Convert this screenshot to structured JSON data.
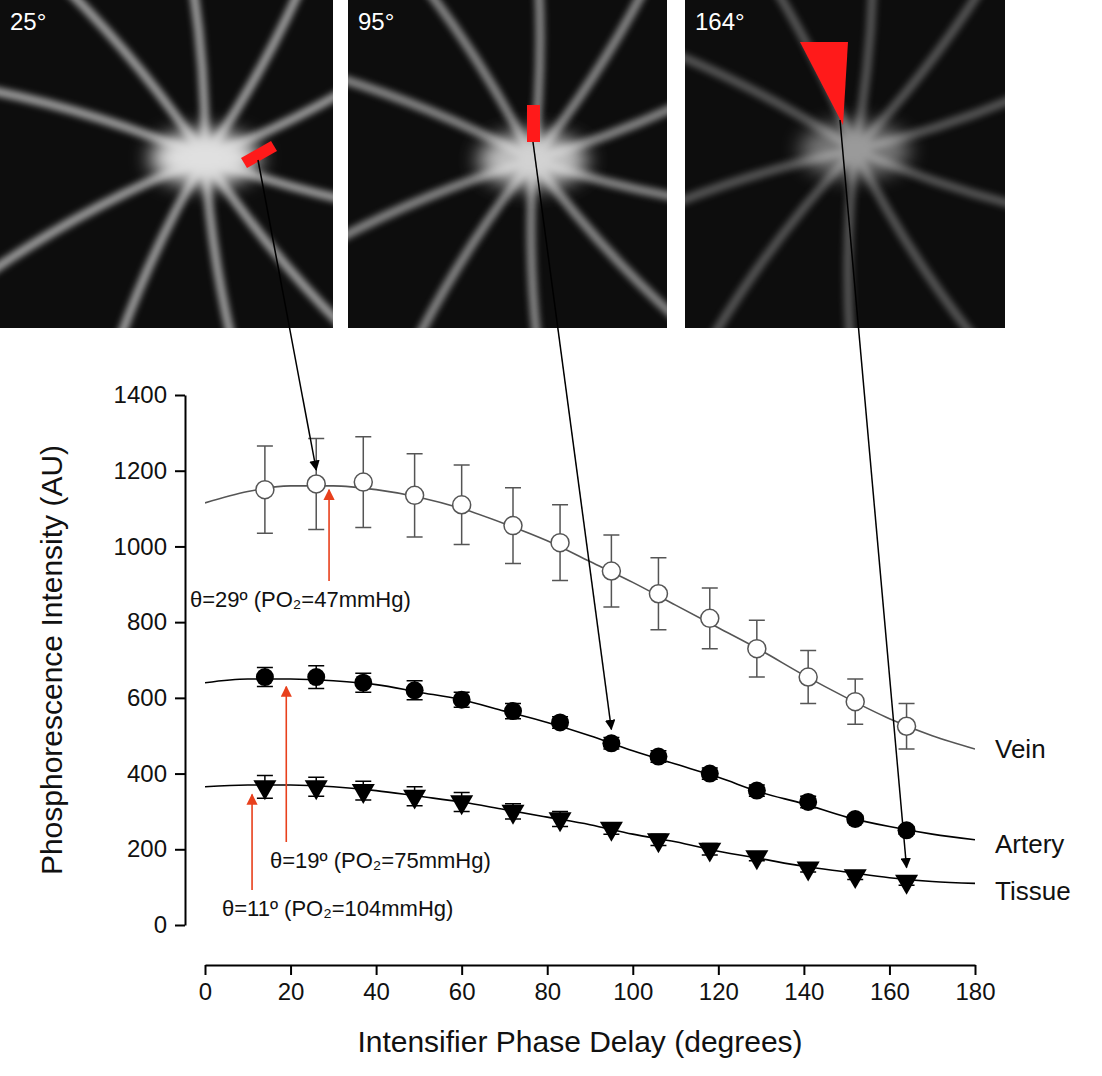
{
  "chart_data": {
    "type": "scatter",
    "xlabel": "Intensifier Phase Delay (degrees)",
    "ylabel": "Phosphorescence Intensity (AU)",
    "xlim": [
      0,
      180
    ],
    "xticks": [
      0,
      20,
      40,
      60,
      80,
      100,
      120,
      140,
      160,
      180
    ],
    "ylim": [
      0,
      1400
    ],
    "yticks": [
      0,
      200,
      400,
      600,
      800,
      1000,
      1200,
      1400
    ],
    "grid": false,
    "x": [
      14,
      26,
      37,
      49,
      60,
      72,
      83,
      95,
      106,
      118,
      129,
      141,
      152,
      164
    ],
    "fit_x": [
      0,
      10,
      20,
      30,
      40,
      50,
      60,
      70,
      80,
      90,
      100,
      110,
      120,
      130,
      140,
      150,
      160,
      170,
      180
    ],
    "series": [
      {
        "name": "Vein",
        "color": "#555555",
        "marker": "open-circle",
        "values": [
          1150,
          1165,
          1170,
          1135,
          1110,
          1055,
          1010,
          935,
          875,
          810,
          730,
          655,
          590,
          525
        ],
        "errors": [
          115,
          120,
          120,
          110,
          105,
          100,
          100,
          95,
          95,
          80,
          75,
          70,
          60,
          60
        ],
        "fit": [
          1115,
          1145,
          1160,
          1160,
          1150,
          1130,
          1100,
          1060,
          1015,
          960,
          905,
          845,
          785,
          725,
          660,
          600,
          545,
          500,
          465
        ]
      },
      {
        "name": "Artery",
        "color": "#000000",
        "marker": "circle",
        "values": [
          655,
          655,
          640,
          620,
          595,
          565,
          535,
          480,
          445,
          400,
          355,
          325,
          280,
          250
        ],
        "errors": [
          25,
          30,
          25,
          25,
          20,
          20,
          15,
          15,
          15,
          15,
          15,
          15,
          10,
          10
        ],
        "fit": [
          640,
          650,
          650,
          645,
          635,
          615,
          595,
          565,
          535,
          500,
          460,
          425,
          390,
          350,
          320,
          285,
          260,
          240,
          225
        ]
      },
      {
        "name": "Tissue",
        "color": "#000000",
        "marker": "triangle-down",
        "values": [
          365,
          365,
          355,
          340,
          325,
          300,
          280,
          255,
          225,
          200,
          180,
          150,
          130,
          115
        ],
        "errors": [
          30,
          25,
          25,
          25,
          25,
          20,
          20,
          15,
          15,
          15,
          10,
          10,
          10,
          10
        ],
        "fit": [
          365,
          370,
          370,
          365,
          355,
          340,
          325,
          305,
          285,
          265,
          240,
          220,
          195,
          175,
          155,
          140,
          125,
          115,
          110
        ]
      }
    ],
    "annotations": [
      {
        "text": "θ=29º (PO₂=47mmHg)",
        "x": 29,
        "y": 1160,
        "color": "#e8401c"
      },
      {
        "text": "θ=19º (PO₂=75mmHg)",
        "x": 19,
        "y": 640,
        "color": "#e8401c"
      },
      {
        "text": "θ=11º (PO₂=104mmHg)",
        "x": 11,
        "y": 355,
        "color": "#e8401c"
      }
    ],
    "panels": [
      {
        "value": 25,
        "label": "25°"
      },
      {
        "value": 95,
        "label": "95°"
      },
      {
        "value": 164,
        "label": "164°"
      }
    ]
  }
}
